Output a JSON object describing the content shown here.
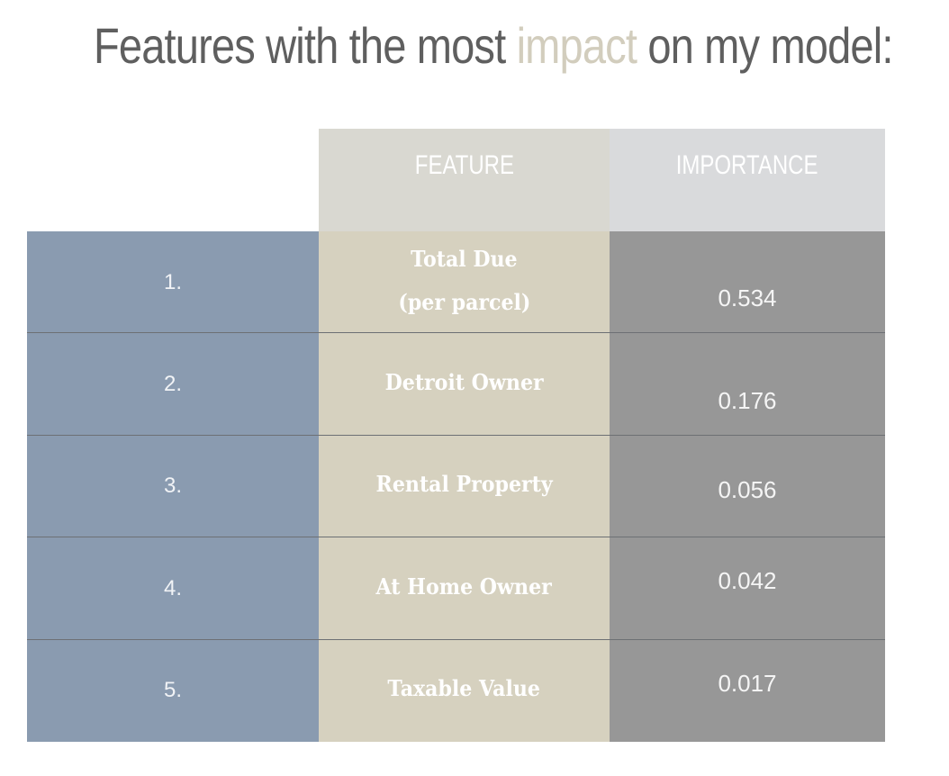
{
  "title": {
    "before": "Features with the most",
    "accent": "impact",
    "after": "on my model:"
  },
  "colors": {
    "title_text": "#5f5f5f",
    "title_accent": "#d2cdbd",
    "rank_column": "#8a9bb0",
    "feature_column": "#d6d1bf",
    "importance_column": "#979797",
    "feature_header": "#d9d8d1",
    "importance_header": "#d9dadc"
  },
  "chart_data": {
    "type": "table",
    "columns": [
      "",
      "FEATURE",
      "IMPORTANCE"
    ],
    "rows": [
      {
        "rank": "1.",
        "feature": "Total Due\n(per parcel)",
        "importance": "0.534"
      },
      {
        "rank": "2.",
        "feature": "Detroit Owner",
        "importance": "0.176"
      },
      {
        "rank": "3.",
        "feature": "Rental Property",
        "importance": "0.056"
      },
      {
        "rank": "4.",
        "feature": "At Home Owner",
        "importance": "0.042"
      },
      {
        "rank": "5.",
        "feature": "Taxable Value",
        "importance": "0.017"
      }
    ]
  }
}
